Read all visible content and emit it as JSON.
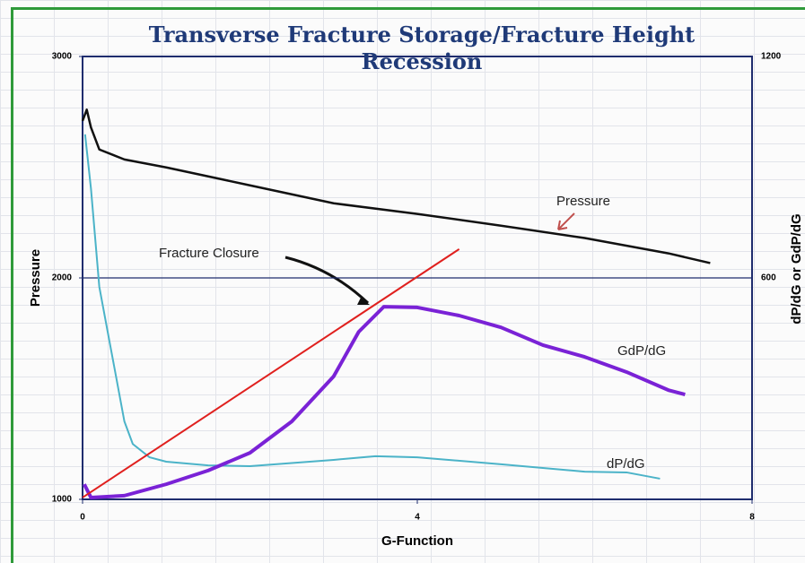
{
  "chart_data": {
    "type": "line",
    "title": "Transverse Fracture Storage/Fracture Height Recession",
    "xlabel": "G-Function",
    "ylabel": "Pressure",
    "y2label": "dP/dG or GdP/dG",
    "annotations": [
      "Fracture Closure"
    ],
    "xlim": [
      0,
      8
    ],
    "xticks": [
      0,
      4,
      8
    ],
    "ylim": [
      1000,
      3000
    ],
    "yticks": [
      1000,
      2000,
      3000
    ],
    "y2lim": [
      0,
      1200
    ],
    "y2ticks": [
      600,
      1200
    ],
    "series": [
      {
        "name": "Pressure",
        "color": "#111111",
        "axis": "y",
        "x": [
          0,
          0.05,
          0.1,
          0.2,
          0.5,
          1,
          2,
          3,
          4,
          5,
          6,
          7,
          7.5
        ],
        "values": [
          2709,
          2760,
          2680,
          2580,
          2535,
          2499,
          2418,
          2337,
          2289,
          2236,
          2180,
          2111,
          2067
        ]
      },
      {
        "name": "dP/dG",
        "color": "#4bb3c8",
        "axis": "y2",
        "x": [
          0.03,
          0.1,
          0.2,
          0.3,
          0.4,
          0.5,
          0.6,
          0.8,
          1,
          1.5,
          2,
          3,
          3.5,
          4,
          5,
          6,
          6.5,
          6.9
        ],
        "values": [
          989,
          843,
          576,
          454,
          333,
          211,
          150,
          114,
          102,
          92,
          90,
          107,
          117,
          114,
          95,
          75,
          73,
          56
        ]
      },
      {
        "name": "GdP/dG",
        "color": "#7a22d6",
        "axis": "y2",
        "x": [
          0.02,
          0.1,
          0.5,
          1,
          1.5,
          2,
          2.5,
          3,
          3.3,
          3.6,
          4,
          4.5,
          5,
          5.5,
          6,
          6.5,
          7,
          7.2
        ],
        "values": [
          41,
          5,
          10,
          41,
          78,
          126,
          211,
          333,
          454,
          522,
          520,
          498,
          466,
          418,
          386,
          345,
          296,
          284
        ]
      },
      {
        "color": "#e0201e",
        "axis": "y2",
        "x": [
          0,
          4.5
        ],
        "values": [
          5,
          678
        ]
      }
    ]
  }
}
